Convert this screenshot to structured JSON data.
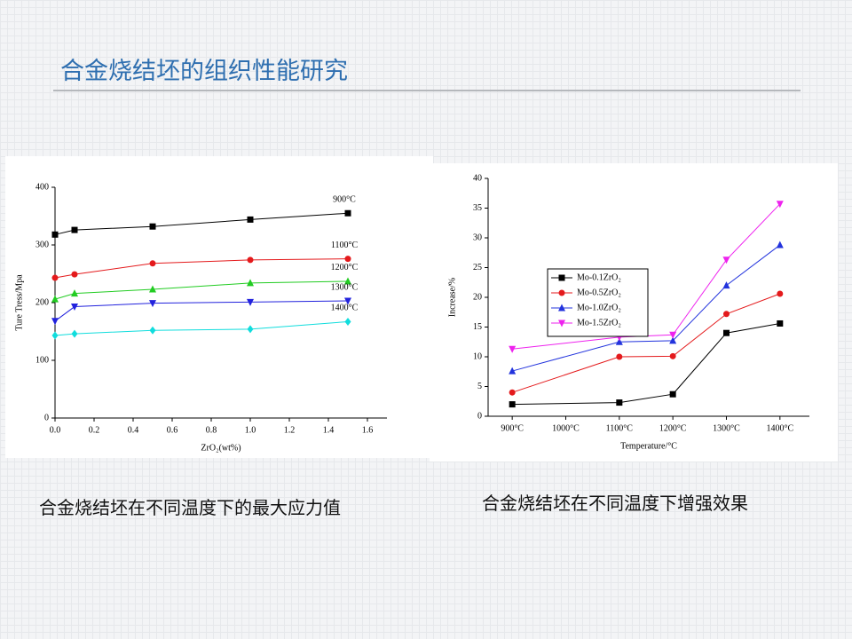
{
  "title": "合金烧结坯的组织性能研究",
  "chart_data": [
    {
      "type": "line",
      "caption": "合金烧结坯在不同温度下的最大应力值",
      "xlabel": "ZrO₂(wt%)",
      "ylabel": "Ture Tress/Mpa",
      "x": [
        0,
        0.1,
        0.5,
        1.0,
        1.5
      ],
      "xlim": [
        0,
        1.7
      ],
      "xticks": [
        {
          "value": 0,
          "label": "0.0"
        },
        {
          "value": 0.2,
          "label": "0.2"
        },
        {
          "value": 0.4,
          "label": "0.4"
        },
        {
          "value": 0.6,
          "label": "0.6"
        },
        {
          "value": 0.8,
          "label": "0.8"
        },
        {
          "value": 1.0,
          "label": "1.0"
        },
        {
          "value": 1.2,
          "label": "1.2"
        },
        {
          "value": 1.4,
          "label": "1.4"
        },
        {
          "value": 1.6,
          "label": "1.6"
        }
      ],
      "ylim": [
        0,
        400
      ],
      "yticks": [
        0,
        100,
        200,
        300,
        400
      ],
      "series": [
        {
          "name": "900°C",
          "color": "#000000",
          "marker": "square",
          "values": [
            318,
            326,
            332,
            344,
            355
          ]
        },
        {
          "name": "1100°C",
          "color": "#e41a1c",
          "marker": "circle",
          "values": [
            243,
            249,
            268,
            274,
            276
          ]
        },
        {
          "name": "1200°C",
          "color": "#22cc22",
          "marker": "triangle-up",
          "values": [
            206,
            216,
            223,
            234,
            237
          ]
        },
        {
          "name": "1300°C",
          "color": "#2222dd",
          "marker": "triangle-down",
          "values": [
            168,
            193,
            199,
            201,
            203
          ]
        },
        {
          "name": "1400°C",
          "color": "#11dddd",
          "marker": "diamond",
          "values": [
            143,
            146,
            152,
            154,
            167
          ]
        }
      ]
    },
    {
      "type": "line",
      "caption": "合金烧结坯在不同温度下增强效果",
      "xlabel": "Temperature/°C",
      "ylabel": "Increase/%",
      "x": [
        900,
        1100,
        1200,
        1300,
        1400
      ],
      "xlim": [
        855,
        1455
      ],
      "xticks": [
        {
          "value": 900,
          "label": "900°C"
        },
        {
          "value": 1000,
          "label": "1000°C"
        },
        {
          "value": 1100,
          "label": "1100°C"
        },
        {
          "value": 1200,
          "label": "1200°C"
        },
        {
          "value": 1300,
          "label": "1300°C"
        },
        {
          "value": 1400,
          "label": "1400°C"
        }
      ],
      "ylim": [
        0,
        40
      ],
      "yticks": [
        0,
        5,
        10,
        15,
        20,
        25,
        30,
        35,
        40
      ],
      "legend": "center left",
      "series": [
        {
          "name": "Mo-0.1ZrO₂",
          "color": "#000000",
          "marker": "square",
          "values": [
            2.0,
            2.3,
            3.7,
            14.0,
            15.6
          ]
        },
        {
          "name": "Mo-0.5ZrO₂",
          "color": "#e41a1c",
          "marker": "circle",
          "values": [
            4.0,
            10.0,
            10.1,
            17.2,
            20.6
          ]
        },
        {
          "name": "Mo-1.0ZrO₂",
          "color": "#2233dd",
          "marker": "triangle-up",
          "values": [
            7.6,
            12.5,
            12.7,
            22.0,
            28.8
          ]
        },
        {
          "name": "Mo-1.5ZrO₂",
          "color": "#ee22ee",
          "marker": "triangle-down",
          "values": [
            11.3,
            13.3,
            13.7,
            26.3,
            35.7
          ]
        }
      ]
    }
  ]
}
